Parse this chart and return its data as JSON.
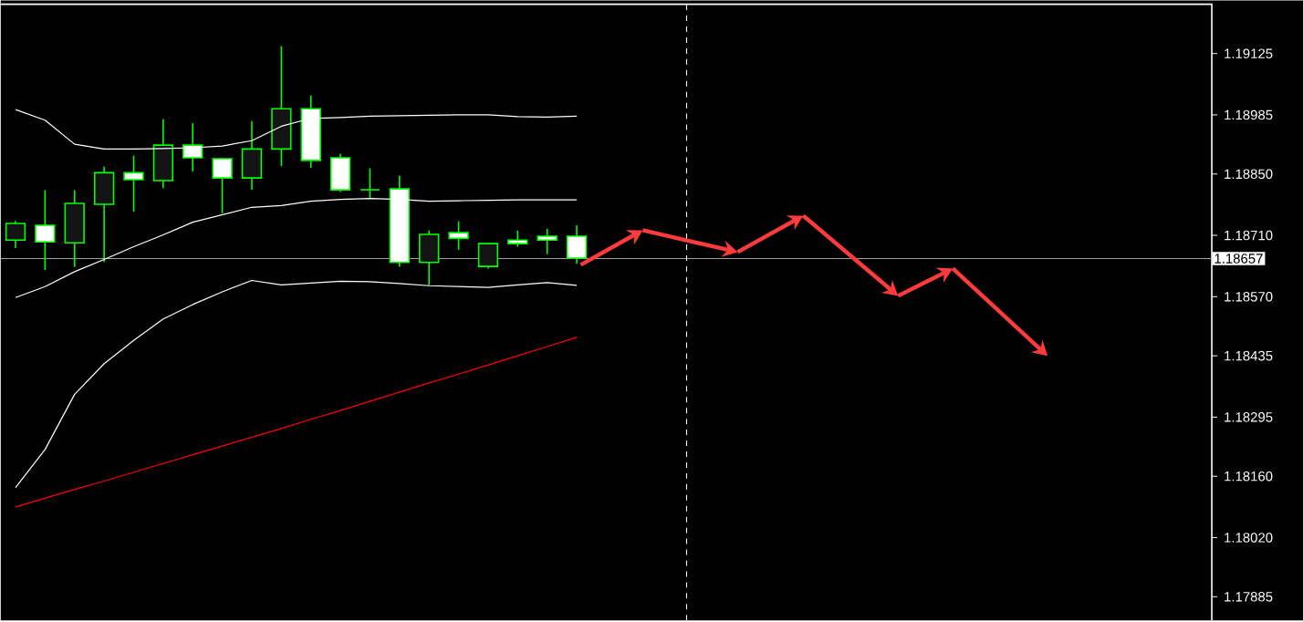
{
  "chart_data": {
    "type": "candlestick",
    "color": "#00ff00",
    "tick_labels": "y",
    "ylim": [
      1.17831,
      1.19246
    ],
    "yticks": [
      {
        "value": 1.19125,
        "label": "1.19125"
      },
      {
        "value": 1.18985,
        "label": "1.18985"
      },
      {
        "value": 1.1885,
        "label": "1.18850"
      },
      {
        "value": 1.1871,
        "label": "1.18710"
      },
      {
        "value": 1.1857,
        "label": "1.18570"
      },
      {
        "value": 1.18435,
        "label": "1.18435"
      },
      {
        "value": 1.18295,
        "label": "1.18295"
      },
      {
        "value": 1.1816,
        "label": "1.18160"
      },
      {
        "value": 1.1802,
        "label": "1.18020"
      },
      {
        "value": 1.17885,
        "label": "1.17885"
      }
    ],
    "categories": [
      null,
      null,
      null,
      null,
      null,
      null,
      null,
      null,
      null,
      null,
      null,
      null,
      null,
      null,
      null,
      null,
      null,
      null,
      null,
      null,
      null,
      null,
      null,
      null,
      null,
      null,
      null,
      null,
      null,
      null,
      null,
      null,
      null,
      null,
      null,
      null,
      null,
      null,
      null,
      null,
      null
    ],
    "ohlc": [
      [
        1.18699,
        1.18743,
        1.18681,
        1.18737
      ],
      [
        1.18733,
        1.18813,
        1.18631,
        1.18695
      ],
      [
        1.18693,
        1.18813,
        1.18638,
        1.18783
      ],
      [
        1.18781,
        1.18867,
        1.18649,
        1.18853
      ],
      [
        1.18853,
        1.18892,
        1.18764,
        1.18837
      ],
      [
        1.18835,
        1.18975,
        1.18818,
        1.18916
      ],
      [
        1.18916,
        1.18966,
        1.18856,
        1.18887
      ],
      [
        1.18885,
        1.18885,
        1.1876,
        1.18841
      ],
      [
        1.18841,
        1.18971,
        1.18814,
        1.18907
      ],
      [
        1.18907,
        1.19142,
        1.18868,
        1.18999
      ],
      [
        1.18999,
        1.19029,
        1.18864,
        1.18881
      ],
      [
        1.18887,
        1.18896,
        1.18809,
        1.18814
      ],
      [
        1.18814,
        1.18863,
        1.18795,
        1.18814
      ],
      [
        1.18816,
        1.18846,
        1.18638,
        1.18648
      ],
      [
        1.18648,
        1.18721,
        1.18596,
        1.18712
      ],
      [
        1.18716,
        1.18742,
        1.18677,
        1.18703
      ],
      [
        1.18639,
        1.18691,
        1.18634,
        1.18691
      ],
      [
        1.18699,
        1.18721,
        1.18684,
        1.18691
      ],
      [
        1.18708,
        1.18725,
        1.18667,
        1.18699
      ],
      [
        1.18708,
        1.18733,
        1.18645,
        1.18658
      ],
      null,
      null,
      null,
      null,
      null,
      null,
      null,
      null,
      null,
      null,
      null,
      null,
      null,
      null,
      null,
      null,
      null,
      null,
      null,
      null,
      null
    ],
    "series": [
      {
        "type": "line",
        "color": "#ffffff",
        "values": [
          1.18997,
          1.18973,
          1.18918,
          1.18907,
          1.18907,
          1.18908,
          1.1891,
          1.18914,
          1.18926,
          1.18959,
          1.18977,
          1.18979,
          1.18982,
          1.18983,
          1.18984,
          1.18985,
          1.18985,
          1.18981,
          1.1898,
          1.18982,
          null,
          null,
          null,
          null,
          null,
          null,
          null,
          null,
          null,
          null,
          null,
          null,
          null,
          null,
          null,
          null,
          null,
          null,
          null,
          null,
          null
        ]
      },
      {
        "type": "line",
        "color": "#ffffff",
        "values": [
          1.18568,
          1.18593,
          1.18627,
          1.18655,
          1.18684,
          1.18711,
          1.1874,
          1.18757,
          1.18774,
          1.18778,
          1.18788,
          1.18792,
          1.18794,
          1.18792,
          1.18788,
          1.18789,
          1.1879,
          1.18791,
          1.18791,
          1.18791,
          null,
          null,
          null,
          null,
          null,
          null,
          null,
          null,
          null,
          null,
          null,
          null,
          null,
          null,
          null,
          null,
          null,
          null,
          null,
          null,
          null
        ]
      },
      {
        "type": "line",
        "color": "#ffffff",
        "values": [
          1.18134,
          1.18221,
          1.18347,
          1.18417,
          1.1847,
          1.18519,
          1.18552,
          1.18581,
          1.18607,
          1.18597,
          1.18601,
          1.18605,
          1.18604,
          1.186,
          1.18595,
          1.18593,
          1.18591,
          1.18597,
          1.18602,
          1.18596,
          null,
          null,
          null,
          null,
          null,
          null,
          null,
          null,
          null,
          null,
          null,
          null,
          null,
          null,
          null,
          null,
          null,
          null,
          null,
          null,
          null
        ]
      },
      {
        "type": "line",
        "color": "#ff0000",
        "values": [
          1.1809,
          1.1811,
          1.1813,
          1.18149,
          1.18169,
          1.18189,
          1.18209,
          1.18229,
          1.18249,
          1.18269,
          1.1829,
          1.1831,
          1.18331,
          1.18352,
          1.18373,
          1.18393,
          1.18414,
          1.18435,
          1.18456,
          1.18477,
          null,
          null,
          null,
          null,
          null,
          null,
          null,
          null,
          null,
          null,
          null,
          null,
          null,
          null,
          null,
          null,
          null,
          null,
          null,
          null,
          null
        ]
      }
    ],
    "ref_lines": [
      {
        "axis": "y",
        "value": 1.18657,
        "label": "1.18657",
        "color": "#a0a0a0"
      }
    ]
  }
}
